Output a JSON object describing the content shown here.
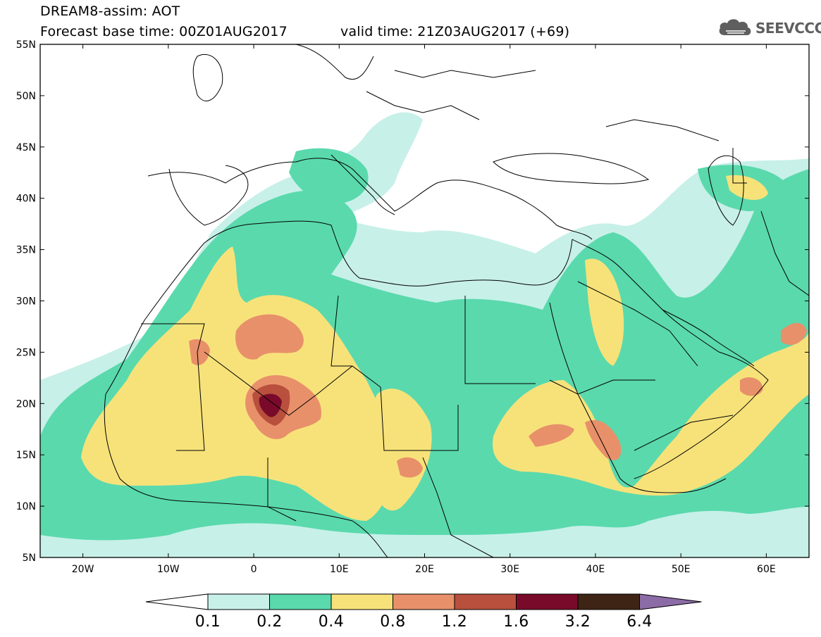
{
  "header": {
    "model_line": "DREAM8-assim: AOT",
    "base_time_line": "Forecast base time: 00Z01AUG2017",
    "valid_time_line": "valid time: 21Z03AUG2017 (+69)"
  },
  "logo": {
    "text": "SEEVCCC",
    "icon": "cloud-icon"
  },
  "map": {
    "lon_range": [
      -25,
      65
    ],
    "lat_range": [
      5,
      55
    ],
    "lat_ticks": [
      {
        "value": 55,
        "label": "55N"
      },
      {
        "value": 50,
        "label": "50N"
      },
      {
        "value": 45,
        "label": "45N"
      },
      {
        "value": 40,
        "label": "40N"
      },
      {
        "value": 35,
        "label": "35N"
      },
      {
        "value": 30,
        "label": "30N"
      },
      {
        "value": 25,
        "label": "25N"
      },
      {
        "value": 20,
        "label": "20N"
      },
      {
        "value": 15,
        "label": "15N"
      },
      {
        "value": 10,
        "label": "10N"
      },
      {
        "value": 5,
        "label": "5N"
      }
    ],
    "lon_ticks": [
      {
        "value": -20,
        "label": "20W"
      },
      {
        "value": -10,
        "label": "10W"
      },
      {
        "value": 0,
        "label": "0"
      },
      {
        "value": 10,
        "label": "10E"
      },
      {
        "value": 20,
        "label": "20E"
      },
      {
        "value": 30,
        "label": "30E"
      },
      {
        "value": 40,
        "label": "40E"
      },
      {
        "value": 50,
        "label": "50E"
      },
      {
        "value": 60,
        "label": "60E"
      }
    ]
  },
  "legend": {
    "thresholds": [
      "0.1",
      "0.2",
      "0.4",
      "0.8",
      "1.2",
      "1.6",
      "3.2",
      "6.4"
    ],
    "colors": [
      "#ffffff",
      "#c7f0e8",
      "#5ad9ad",
      "#f7e27a",
      "#e8906a",
      "#b8503d",
      "#7a0a2a",
      "#3e2414",
      "#8c6ca6"
    ]
  }
}
